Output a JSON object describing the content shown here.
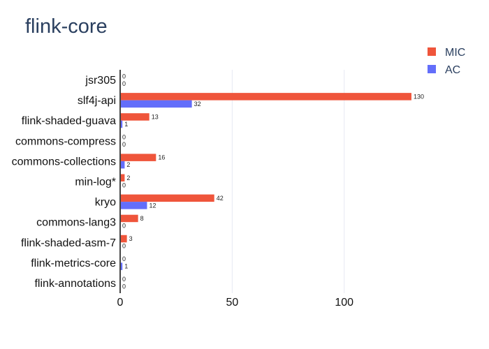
{
  "chart_data": {
    "type": "bar",
    "orientation": "horizontal",
    "title": "flink-core",
    "categories": [
      "jsr305",
      "slf4j-api",
      "flink-shaded-guava",
      "commons-compress",
      "commons-collections",
      "min-log*",
      "kryo",
      "commons-lang3",
      "flink-shaded-asm-7",
      "flink-metrics-core",
      "flink-annotations"
    ],
    "series": [
      {
        "name": "MIC",
        "color": "#ef553b",
        "values": [
          0,
          130,
          13,
          0,
          16,
          2,
          42,
          8,
          3,
          0,
          0
        ]
      },
      {
        "name": "AC",
        "color": "#636efa",
        "values": [
          0,
          32,
          1,
          0,
          2,
          0,
          12,
          0,
          0,
          1,
          0
        ]
      }
    ],
    "data_labels": {
      "MIC": [
        "0",
        "130",
        "13",
        "0",
        "16",
        "2",
        "42",
        "8",
        "3",
        "0",
        "0"
      ],
      "AC": [
        "0",
        "32",
        "1",
        "0",
        "2",
        "0",
        "12",
        "0",
        "0",
        "1",
        "0"
      ]
    },
    "xlim": [
      0,
      135
    ],
    "xticks": [
      0,
      50,
      100
    ],
    "xtick_labels": [
      "0",
      "50",
      "100"
    ],
    "xlabel": "",
    "ylabel": "",
    "grid": "vertical",
    "legend_position": "top-right"
  }
}
